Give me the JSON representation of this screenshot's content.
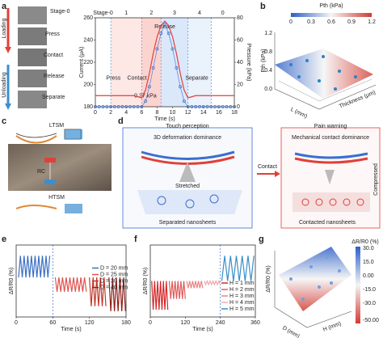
{
  "panel_labels": [
    "a",
    "b",
    "c",
    "d",
    "e",
    "f",
    "g"
  ],
  "photos": {
    "stages": [
      "Stage-0",
      "Press",
      "Contact",
      "Release",
      "Separate"
    ],
    "loading": "Loading",
    "unloading": "Unloading"
  },
  "panel_b": {
    "colorbar_title": "Pth (kPa)",
    "colorbar_ticks": [
      "0",
      "0.3",
      "0.6",
      "0.9",
      "1.2"
    ],
    "z_label": "Pth (kPa)",
    "z_ticks": [
      "0.0",
      "0.4",
      "0.8",
      "1.2"
    ],
    "x_label": "L (mm)",
    "y_label": "Thickness (μm)"
  },
  "panel_c": {
    "top": "LTSM",
    "bottom": "HTSM",
    "resistance": "RC"
  },
  "panel_d": {
    "left_title": "Touch perception",
    "right_title": "Pain warning",
    "left_heading": "3D deformation dominance",
    "right_heading": "Mechanical contact dominance",
    "stretched": "Stretched",
    "separated": "Separated nanosheets",
    "contact": "Contact",
    "compressed": "Compressed",
    "contacted": "Contacted nanosheets"
  },
  "panel_g": {
    "colorbar_title": "ΔR/R0 (%)",
    "colorbar_ticks": [
      "30.0",
      "15.0",
      "0.00",
      "-15.0",
      "-30.0",
      "-50.00"
    ],
    "z_label": "ΔR/R0 (%)",
    "x_label": "D (mm)",
    "y_label": "H (mm)"
  },
  "chart_data": [
    {
      "type": "line",
      "xlabel": "Time (s)",
      "ylabel": "Current (μA)",
      "y2label": "Pressure (kPa)",
      "stage_labels": [
        "Stage-0",
        "1",
        "2",
        "3",
        "4",
        "0"
      ],
      "stage_bounds": [
        2,
        6,
        8.5,
        12,
        15
      ],
      "annotations": [
        "Press",
        "Contact",
        "Release",
        "Separate",
        "0.27 kPa"
      ],
      "xlim": [
        0,
        18
      ],
      "xticks": [
        0,
        2,
        4,
        6,
        8,
        10,
        12,
        14,
        16,
        18
      ],
      "ylim": [
        180,
        260
      ],
      "yticks": [
        180,
        200,
        220,
        240,
        260
      ],
      "y2lim": [
        0,
        80
      ],
      "y2ticks": [
        0,
        20,
        40,
        60,
        80
      ],
      "x": [
        0,
        0.5,
        1,
        1.5,
        2,
        2.5,
        3,
        3.5,
        4,
        4.5,
        5,
        5.5,
        6,
        6.5,
        7,
        7.5,
        8,
        8.5,
        9,
        9.5,
        10,
        10.5,
        11,
        11.5,
        12,
        12.5,
        13,
        13.5,
        14,
        14.5,
        15,
        15.5,
        16,
        16.5,
        17,
        17.5,
        18
      ],
      "series": [
        {
          "name": "Current",
          "color": "#e0403a",
          "values": [
            190,
            190,
            190,
            190,
            190,
            190,
            190,
            190,
            190,
            190,
            190,
            189,
            188,
            195,
            210,
            228,
            243,
            253,
            257,
            253,
            243,
            228,
            210,
            195,
            188,
            189,
            190,
            190,
            190,
            190,
            190,
            190,
            190,
            190,
            190,
            190,
            190
          ]
        },
        {
          "name": "Pressure",
          "color": "#3b6fd0",
          "axis": "y2",
          "marker": "o",
          "values": [
            0,
            0,
            0,
            0,
            0,
            0,
            0,
            0,
            0,
            0,
            0,
            0,
            0,
            5,
            18,
            35,
            52,
            66,
            74,
            66,
            52,
            35,
            18,
            5,
            0,
            0,
            0,
            0,
            0,
            0,
            0,
            0,
            0,
            0,
            0,
            0,
            0
          ]
        }
      ]
    },
    {
      "type": "line",
      "xlabel": "Time (s)",
      "ylabel": "ΔR/R0 (%)",
      "xlim": [
        0,
        180
      ],
      "xticks": [
        0,
        60,
        120,
        180
      ],
      "ylim": [
        0,
        1
      ],
      "divider": 60,
      "legend": "right",
      "series": [
        {
          "name": "D = 20 mm",
          "color": "#3b6fc4",
          "x": [
            4,
            7,
            10,
            13,
            16,
            19,
            22,
            25,
            28,
            31,
            34,
            37,
            40,
            43,
            46,
            49,
            52,
            55
          ],
          "values": [
            0.55,
            0.85,
            0.55,
            0.85,
            0.55,
            0.85,
            0.55,
            0.85,
            0.55,
            0.85,
            0.55,
            0.85,
            0.55,
            0.85,
            0.55,
            0.85,
            0.55,
            0.85
          ]
        },
        {
          "name": "D = 25 mm",
          "color": "#e0524f",
          "x": [
            64,
            67,
            70,
            73,
            76,
            79,
            82,
            85,
            88,
            91,
            94,
            97,
            100,
            103,
            106,
            109,
            112,
            115
          ],
          "values": [
            0.55,
            0.35,
            0.55,
            0.35,
            0.55,
            0.35,
            0.55,
            0.35,
            0.55,
            0.35,
            0.55,
            0.35,
            0.55,
            0.35,
            0.55,
            0.35,
            0.55,
            0.35
          ]
        },
        {
          "name": "D = 30 mm",
          "color": "#c0392b",
          "x": [
            120,
            123,
            126,
            129,
            132,
            135,
            138,
            141,
            144,
            147
          ],
          "values": [
            0.55,
            0.15,
            0.55,
            0.15,
            0.55,
            0.15,
            0.55,
            0.15,
            0.55,
            0.15
          ]
        },
        {
          "name": "D = 40 mm",
          "color": "#8e1f1a",
          "x": [
            152,
            155,
            158,
            161,
            164,
            167,
            170,
            173,
            176,
            179
          ],
          "values": [
            0.55,
            0.08,
            0.55,
            0.08,
            0.55,
            0.08,
            0.55,
            0.08,
            0.55,
            0.08
          ]
        }
      ]
    },
    {
      "type": "line",
      "xlabel": "Time (s)",
      "ylabel": "ΔR/R0 (%)",
      "xlim": [
        0,
        360
      ],
      "xticks": [
        0,
        120,
        240,
        360
      ],
      "ylim": [
        0,
        1
      ],
      "divider": 240,
      "legend": "lower right",
      "series": [
        {
          "name": "H = 1 mm",
          "color": "#d62728",
          "x": [
            5,
            10,
            15,
            20,
            25,
            30,
            35,
            40,
            45,
            50,
            55,
            60
          ],
          "values": [
            0.5,
            0.1,
            0.5,
            0.1,
            0.5,
            0.1,
            0.5,
            0.1,
            0.5,
            0.1,
            0.5,
            0.1
          ]
        },
        {
          "name": "H = 2 mm",
          "color": "#e05a5a",
          "x": [
            65,
            70,
            75,
            80,
            85,
            90,
            95,
            100,
            105,
            110,
            115,
            120
          ],
          "values": [
            0.5,
            0.25,
            0.5,
            0.25,
            0.5,
            0.25,
            0.5,
            0.25,
            0.5,
            0.25,
            0.5,
            0.25
          ]
        },
        {
          "name": "H = 3 mm",
          "color": "#e98585",
          "x": [
            125,
            130,
            135,
            140,
            145,
            150,
            155,
            160,
            165,
            170,
            175,
            180
          ],
          "values": [
            0.5,
            0.4,
            0.5,
            0.4,
            0.5,
            0.4,
            0.5,
            0.4,
            0.5,
            0.4,
            0.5,
            0.4
          ]
        },
        {
          "name": "H = 4 mm",
          "color": "#f0aaaa",
          "x": [
            185,
            190,
            195,
            200,
            205,
            210,
            215,
            220,
            225,
            230,
            235,
            240
          ],
          "values": [
            0.5,
            0.45,
            0.5,
            0.45,
            0.5,
            0.45,
            0.5,
            0.45,
            0.5,
            0.45,
            0.5,
            0.45
          ]
        },
        {
          "name": "H = 5 mm",
          "color": "#3a8fc8",
          "x": [
            245,
            255,
            265,
            275,
            285,
            295,
            305,
            315,
            325,
            335,
            345,
            355
          ],
          "values": [
            0.5,
            0.85,
            0.5,
            0.85,
            0.5,
            0.85,
            0.5,
            0.85,
            0.5,
            0.85,
            0.5,
            0.85
          ]
        }
      ]
    }
  ]
}
